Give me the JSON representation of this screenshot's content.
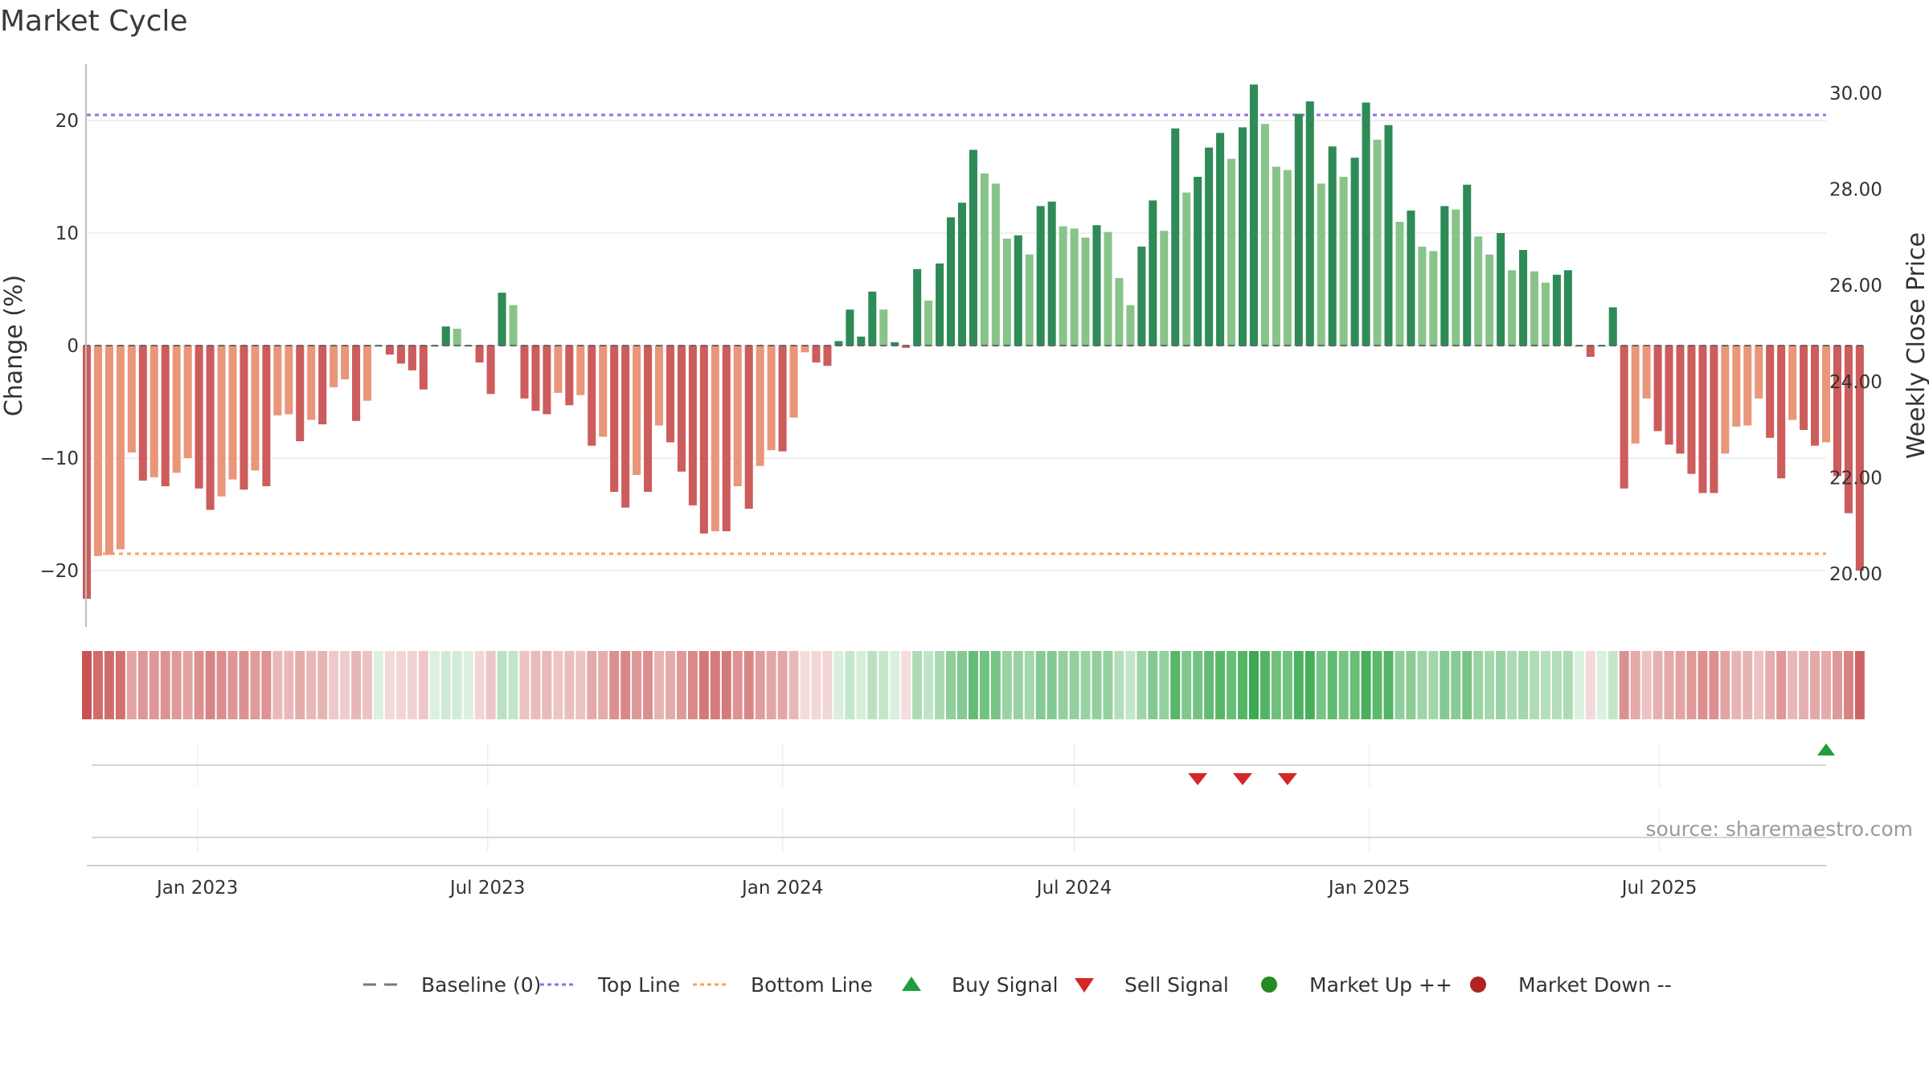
{
  "title": "Market Cycle",
  "source": "source: sharemaestro.com",
  "colors": {
    "strong_up": "#2e8b57",
    "weak_up": "#88c48a",
    "strong_down": "#cd5c5c",
    "weak_down": "#e9967a",
    "top_line": "#9370db",
    "bottom_line": "#f4a460",
    "buy": "#1e9e3e",
    "sell": "#d62728",
    "market_up": "#228b22",
    "market_down": "#b22222"
  },
  "legend": [
    {
      "label": "Baseline (0)",
      "kind": "dash",
      "color": "#777777"
    },
    {
      "label": "Top Line",
      "kind": "dot",
      "color": "#9370db"
    },
    {
      "label": "Bottom Line",
      "kind": "dot",
      "color": "#f4a460"
    },
    {
      "label": "Buy Signal",
      "kind": "tri-up",
      "color": "#1e9e3e"
    },
    {
      "label": "Sell Signal",
      "kind": "tri-down",
      "color": "#d62728"
    },
    {
      "label": "Market Up ++",
      "kind": "circle",
      "color": "#228b22"
    },
    {
      "label": "Market Down --",
      "kind": "circle",
      "color": "#b22222"
    }
  ],
  "chart_data": {
    "type": "bar",
    "title": "Market Cycle",
    "ylabel": "Change (%)",
    "y2label": "Weekly Close Price",
    "ylim": [
      -25,
      25
    ],
    "y_ticks": [
      20,
      10,
      0,
      -10,
      -20
    ],
    "y_tick_labels": [
      "20",
      "10",
      "0",
      "−10",
      "−20"
    ],
    "y2lim": [
      18.9,
      30.6
    ],
    "y2_ticks": [
      30,
      28,
      26,
      24,
      22,
      20
    ],
    "y2_tick_labels": [
      "30.00",
      "28.00",
      "26.00",
      "24.00",
      "22.00",
      "20.00"
    ],
    "top_line": 20.5,
    "bottom_line": -18.5,
    "x_start": "2022-10-24",
    "x_end": "2025-10-13",
    "x_ticks": [
      {
        "date": "2023-01-01",
        "label": "Jan 2023"
      },
      {
        "date": "2023-07-01",
        "label": "Jul 2023"
      },
      {
        "date": "2024-01-01",
        "label": "Jan 2024"
      },
      {
        "date": "2024-07-01",
        "label": "Jul 2024"
      },
      {
        "date": "2025-01-01",
        "label": "Jan 2025"
      },
      {
        "date": "2025-07-01",
        "label": "Jul 2025"
      }
    ],
    "first_week": "2022-10-24",
    "values": [
      -22.5,
      -18.7,
      -18.6,
      -18.1,
      -9.5,
      -12,
      -11.7,
      -12.5,
      -11.3,
      -10,
      -12.7,
      -14.6,
      -13.4,
      -11.9,
      -12.8,
      -11.1,
      -12.5,
      -6.2,
      -6.1,
      -8.5,
      -6.6,
      -7,
      -3.7,
      -3,
      -6.7,
      -4.9,
      0,
      -0.8,
      -1.6,
      -2.2,
      -3.9,
      0,
      1.7,
      1.5,
      0,
      -1.5,
      -4.3,
      4.7,
      3.6,
      -4.7,
      -5.8,
      -6.1,
      -4.2,
      -5.3,
      -4.4,
      -8.9,
      -8.1,
      -13,
      -14.4,
      -11.5,
      -13,
      -7.1,
      -8.6,
      -11.2,
      -14.2,
      -16.7,
      -16.5,
      -16.5,
      -12.5,
      -14.5,
      -10.7,
      -9.3,
      -9.4,
      -6.4,
      -0.6,
      -1.5,
      -1.8,
      0.4,
      3.2,
      0.8,
      4.8,
      3.2,
      0.3,
      -0.2,
      6.8,
      4,
      7.3,
      11.4,
      12.7,
      17.4,
      15.3,
      14.4,
      9.5,
      9.8,
      8.1,
      12.4,
      12.8,
      10.6,
      10.4,
      9.6,
      10.7,
      10.1,
      6,
      3.6,
      8.8,
      12.9,
      10.2,
      19.3,
      13.6,
      15,
      17.6,
      18.9,
      16.6,
      19.4,
      23.2,
      19.7,
      15.9,
      15.6,
      20.6,
      21.7,
      14.4,
      17.7,
      15,
      16.7,
      21.6,
      18.3,
      19.6,
      11,
      12,
      8.8,
      8.4,
      12.4,
      12.1,
      14.3,
      9.7,
      8.1,
      10,
      6.7,
      8.5,
      6.6,
      5.6,
      6.3,
      6.7,
      0,
      -1,
      0,
      3.4,
      -12.7,
      -8.7,
      -4.7,
      -7.6,
      -8.8,
      -9.6,
      -11.4,
      -13.1,
      -13.1,
      -9.6,
      -7.2,
      -7.1,
      -4.7,
      -8.2,
      -11.8,
      -6.6,
      -7.5,
      -8.9,
      -8.6,
      -11.6,
      -14.9,
      -20
    ],
    "signals": [
      {
        "type": "sell",
        "date": "2024-09-16"
      },
      {
        "type": "sell",
        "date": "2024-10-14"
      },
      {
        "type": "sell",
        "date": "2024-11-11"
      },
      {
        "type": "buy",
        "date": "2025-10-13"
      }
    ]
  }
}
